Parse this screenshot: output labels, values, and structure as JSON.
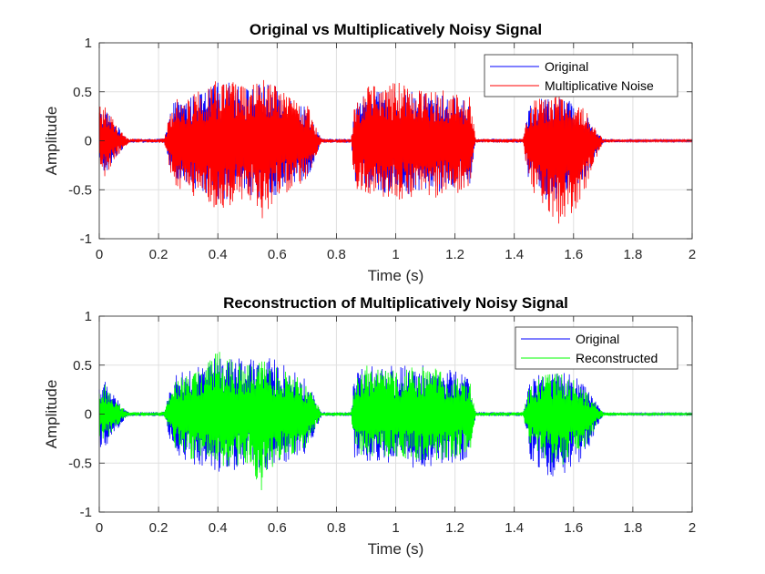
{
  "chart_data": [
    {
      "type": "line",
      "title": "Original vs Multiplicatively Noisy Signal",
      "xlabel": "Time (s)",
      "ylabel": "Amplitude",
      "xlim": [
        0,
        2
      ],
      "ylim": [
        -1,
        1
      ],
      "xticks": [
        0,
        0.2,
        0.4,
        0.6,
        0.8,
        1,
        1.2,
        1.4,
        1.6,
        1.8,
        2
      ],
      "xticklabels": [
        "0",
        "0.2",
        "0.4",
        "0.6",
        "0.8",
        "1",
        "1.2",
        "1.4",
        "1.6",
        "1.8",
        "2"
      ],
      "yticks": [
        -1,
        -0.5,
        0,
        0.5,
        1
      ],
      "yticklabels": [
        "-1",
        "-0.5",
        "0",
        "0.5",
        "1"
      ],
      "grid": true,
      "legend_position": "top-right",
      "series": [
        {
          "name": "Original",
          "color": "#0000ff",
          "envelope": {
            "x": [
              0,
              0.02,
              0.05,
              0.08,
              0.1,
              0.2,
              0.22,
              0.25,
              0.3,
              0.35,
              0.4,
              0.45,
              0.5,
              0.55,
              0.6,
              0.65,
              0.7,
              0.75,
              0.8,
              0.85,
              0.86,
              0.9,
              1.0,
              1.1,
              1.2,
              1.25,
              1.27,
              1.3,
              1.4,
              1.43,
              1.45,
              1.5,
              1.55,
              1.6,
              1.65,
              1.68,
              1.7,
              1.8,
              2.0
            ],
            "upper": [
              0.3,
              0.35,
              0.2,
              0.08,
              0.02,
              0.02,
              0.03,
              0.4,
              0.45,
              0.5,
              0.6,
              0.6,
              0.55,
              0.6,
              0.55,
              0.45,
              0.35,
              0.02,
              0.02,
              0.02,
              0.4,
              0.5,
              0.5,
              0.5,
              0.45,
              0.4,
              0.02,
              0.02,
              0.02,
              0.02,
              0.35,
              0.45,
              0.45,
              0.4,
              0.25,
              0.1,
              0.02,
              0.01,
              0.01
            ],
            "lower": [
              -0.35,
              -0.35,
              -0.2,
              -0.08,
              -0.02,
              -0.02,
              -0.03,
              -0.4,
              -0.5,
              -0.55,
              -0.6,
              -0.6,
              -0.55,
              -0.6,
              -0.55,
              -0.45,
              -0.4,
              -0.02,
              -0.02,
              -0.02,
              -0.45,
              -0.5,
              -0.55,
              -0.55,
              -0.5,
              -0.45,
              -0.02,
              -0.02,
              -0.02,
              -0.02,
              -0.45,
              -0.6,
              -0.7,
              -0.55,
              -0.4,
              -0.12,
              -0.02,
              -0.01,
              -0.01
            ]
          }
        },
        {
          "name": "Multiplicative Noise",
          "color": "#ff0000",
          "envelope": {
            "x": [
              0,
              0.02,
              0.05,
              0.08,
              0.1,
              0.2,
              0.22,
              0.25,
              0.3,
              0.35,
              0.4,
              0.45,
              0.5,
              0.55,
              0.6,
              0.65,
              0.7,
              0.75,
              0.8,
              0.85,
              0.86,
              0.9,
              1.0,
              1.1,
              1.2,
              1.25,
              1.27,
              1.3,
              1.4,
              1.43,
              1.45,
              1.5,
              1.55,
              1.6,
              1.65,
              1.68,
              1.7,
              1.8,
              2.0
            ],
            "upper": [
              0.35,
              0.38,
              0.2,
              0.08,
              0.02,
              0.02,
              0.03,
              0.45,
              0.45,
              0.55,
              0.62,
              0.6,
              0.55,
              0.63,
              0.55,
              0.48,
              0.38,
              0.02,
              0.02,
              0.02,
              0.42,
              0.55,
              0.6,
              0.55,
              0.5,
              0.45,
              0.02,
              0.02,
              0.02,
              0.02,
              0.4,
              0.45,
              0.5,
              0.45,
              0.28,
              0.1,
              0.02,
              0.01,
              0.01
            ],
            "lower": [
              -0.35,
              -0.38,
              -0.2,
              -0.08,
              -0.02,
              -0.02,
              -0.03,
              -0.45,
              -0.55,
              -0.6,
              -0.75,
              -0.68,
              -0.58,
              -0.8,
              -0.6,
              -0.5,
              -0.42,
              -0.02,
              -0.02,
              -0.02,
              -0.5,
              -0.55,
              -0.6,
              -0.6,
              -0.55,
              -0.5,
              -0.02,
              -0.02,
              -0.02,
              -0.02,
              -0.5,
              -0.68,
              -0.85,
              -0.75,
              -0.45,
              -0.15,
              -0.02,
              -0.01,
              -0.01
            ]
          }
        }
      ]
    },
    {
      "type": "line",
      "title": "Reconstruction of Multiplicatively Noisy Signal",
      "xlabel": "Time (s)",
      "ylabel": "Amplitude",
      "xlim": [
        0,
        2
      ],
      "ylim": [
        -1,
        1
      ],
      "xticks": [
        0,
        0.2,
        0.4,
        0.6,
        0.8,
        1,
        1.2,
        1.4,
        1.6,
        1.8,
        2
      ],
      "xticklabels": [
        "0",
        "0.2",
        "0.4",
        "0.6",
        "0.8",
        "1",
        "1.2",
        "1.4",
        "1.6",
        "1.8",
        "2"
      ],
      "yticks": [
        -1,
        -0.5,
        0,
        0.5,
        1
      ],
      "yticklabels": [
        "-1",
        "-0.5",
        "0",
        "0.5",
        "1"
      ],
      "grid": true,
      "legend_position": "top-right",
      "series": [
        {
          "name": "Original",
          "color": "#0000ff",
          "envelope": {
            "x": [
              0,
              0.02,
              0.05,
              0.08,
              0.1,
              0.2,
              0.22,
              0.25,
              0.3,
              0.35,
              0.4,
              0.45,
              0.5,
              0.55,
              0.6,
              0.65,
              0.7,
              0.75,
              0.8,
              0.85,
              0.86,
              0.9,
              1.0,
              1.1,
              1.2,
              1.25,
              1.27,
              1.3,
              1.4,
              1.43,
              1.45,
              1.5,
              1.55,
              1.6,
              1.65,
              1.68,
              1.7,
              1.8,
              2.0
            ],
            "upper": [
              0.3,
              0.35,
              0.2,
              0.08,
              0.02,
              0.02,
              0.03,
              0.4,
              0.45,
              0.5,
              0.6,
              0.6,
              0.55,
              0.6,
              0.55,
              0.45,
              0.35,
              0.02,
              0.02,
              0.02,
              0.4,
              0.5,
              0.5,
              0.5,
              0.45,
              0.4,
              0.02,
              0.02,
              0.02,
              0.02,
              0.35,
              0.45,
              0.45,
              0.4,
              0.25,
              0.1,
              0.02,
              0.01,
              0.01
            ],
            "lower": [
              -0.35,
              -0.35,
              -0.2,
              -0.08,
              -0.02,
              -0.02,
              -0.03,
              -0.4,
              -0.5,
              -0.55,
              -0.6,
              -0.6,
              -0.55,
              -0.6,
              -0.55,
              -0.45,
              -0.4,
              -0.02,
              -0.02,
              -0.02,
              -0.45,
              -0.5,
              -0.55,
              -0.55,
              -0.5,
              -0.45,
              -0.02,
              -0.02,
              -0.02,
              -0.02,
              -0.45,
              -0.6,
              -0.7,
              -0.55,
              -0.4,
              -0.12,
              -0.02,
              -0.01,
              -0.01
            ]
          }
        },
        {
          "name": "Reconstructed",
          "color": "#00ff00",
          "envelope": {
            "x": [
              0,
              0.02,
              0.05,
              0.08,
              0.1,
              0.2,
              0.22,
              0.25,
              0.3,
              0.35,
              0.4,
              0.45,
              0.5,
              0.55,
              0.6,
              0.65,
              0.7,
              0.75,
              0.8,
              0.85,
              0.86,
              0.9,
              1.0,
              1.1,
              1.2,
              1.25,
              1.27,
              1.3,
              1.4,
              1.43,
              1.45,
              1.5,
              1.55,
              1.6,
              1.65,
              1.68,
              1.7,
              1.8,
              2.0
            ],
            "upper": [
              0.25,
              0.3,
              0.15,
              0.06,
              0.02,
              0.02,
              0.03,
              0.35,
              0.4,
              0.5,
              0.65,
              0.55,
              0.5,
              0.55,
              0.5,
              0.42,
              0.3,
              0.02,
              0.02,
              0.02,
              0.35,
              0.5,
              0.45,
              0.5,
              0.4,
              0.35,
              0.02,
              0.02,
              0.02,
              0.02,
              0.3,
              0.4,
              0.45,
              0.35,
              0.2,
              0.08,
              0.02,
              0.01,
              0.01
            ],
            "lower": [
              -0.25,
              -0.3,
              -0.15,
              -0.06,
              -0.02,
              -0.02,
              -0.03,
              -0.35,
              -0.45,
              -0.5,
              -0.55,
              -0.55,
              -0.5,
              -0.8,
              -0.5,
              -0.42,
              -0.35,
              -0.02,
              -0.02,
              -0.02,
              -0.4,
              -0.45,
              -0.45,
              -0.5,
              -0.45,
              -0.4,
              -0.02,
              -0.02,
              -0.02,
              -0.02,
              -0.35,
              -0.45,
              -0.55,
              -0.45,
              -0.3,
              -0.1,
              -0.02,
              -0.01,
              -0.01
            ]
          }
        }
      ]
    }
  ]
}
